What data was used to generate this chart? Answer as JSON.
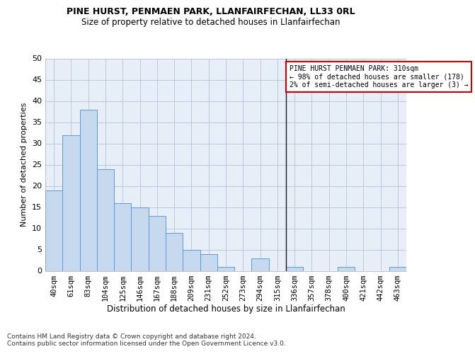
{
  "title1": "PINE HURST, PENMAEN PARK, LLANFAIRFECHAN, LL33 0RL",
  "title2": "Size of property relative to detached houses in Llanfairfechan",
  "xlabel": "Distribution of detached houses by size in Llanfairfechan",
  "ylabel": "Number of detached properties",
  "footer": "Contains HM Land Registry data © Crown copyright and database right 2024.\nContains public sector information licensed under the Open Government Licence v3.0.",
  "bin_labels": [
    "40sqm",
    "61sqm",
    "83sqm",
    "104sqm",
    "125sqm",
    "146sqm",
    "167sqm",
    "188sqm",
    "209sqm",
    "231sqm",
    "252sqm",
    "273sqm",
    "294sqm",
    "315sqm",
    "336sqm",
    "357sqm",
    "378sqm",
    "400sqm",
    "421sqm",
    "442sqm",
    "463sqm"
  ],
  "values": [
    19,
    32,
    38,
    24,
    16,
    15,
    13,
    9,
    5,
    4,
    1,
    0,
    3,
    0,
    1,
    0,
    0,
    1,
    0,
    0,
    1
  ],
  "bar_color": "#c5d8ed",
  "bar_edge_color": "#5b9bd5",
  "vline_x_index": 13,
  "vline_color": "#1a1a1a",
  "ylim": [
    0,
    50
  ],
  "yticks": [
    0,
    5,
    10,
    15,
    20,
    25,
    30,
    35,
    40,
    45,
    50
  ],
  "annotation_text": "PINE HURST PENMAEN PARK: 310sqm\n← 98% of detached houses are smaller (178)\n2% of semi-detached houses are larger (3) →",
  "annotation_box_color": "#ffffff",
  "annotation_border_color": "#cc0000",
  "plot_bg_color": "#e8eef7",
  "background_color": "#ffffff",
  "grid_color": "#b8c8de",
  "title1_fontsize": 9,
  "title2_fontsize": 8.5,
  "ylabel_fontsize": 8,
  "xlabel_fontsize": 8.5,
  "footer_fontsize": 6.5,
  "tick_fontsize": 7.5,
  "ytick_fontsize": 8
}
